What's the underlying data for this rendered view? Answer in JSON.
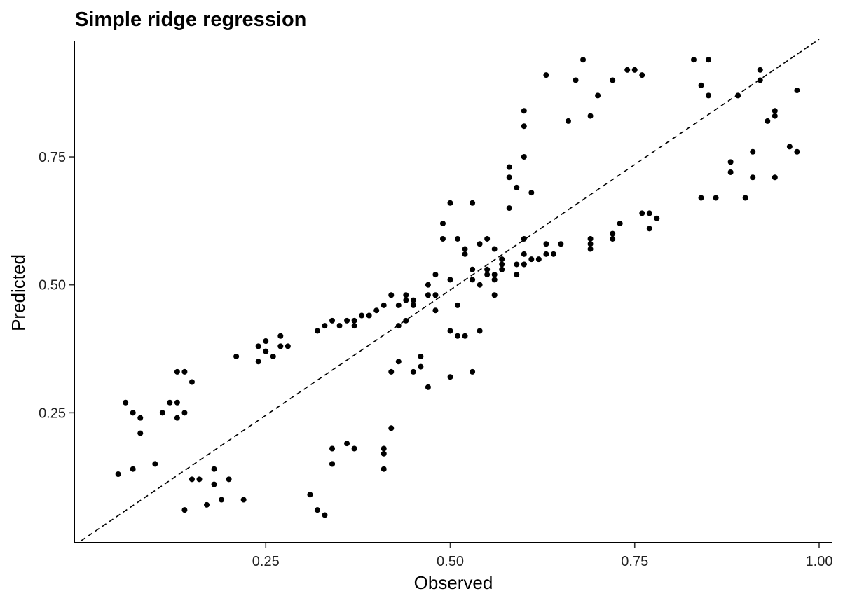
{
  "chart_data": {
    "type": "scatter",
    "title": "Simple ridge regression",
    "xlabel": "Observed",
    "ylabel": "Predicted",
    "xlim": [
      0.0,
      1.0
    ],
    "ylim": [
      0.0,
      0.98
    ],
    "x_ticks": [
      0.25,
      0.5,
      0.75,
      1.0
    ],
    "x_tick_labels": [
      "0.25",
      "0.50",
      "0.75",
      "1.00"
    ],
    "y_ticks": [
      0.25,
      0.5,
      0.75
    ],
    "y_tick_labels": [
      "0.25",
      "0.50",
      "0.75"
    ],
    "grid": false,
    "legend": "none",
    "point_color": "#000000",
    "reference_line": {
      "style": "dashed",
      "from": [
        0.0,
        0.0
      ],
      "to": [
        1.0,
        0.98
      ]
    },
    "series": [
      {
        "points": [
          [
            0.05,
            0.13
          ],
          [
            0.07,
            0.14
          ],
          [
            0.06,
            0.27
          ],
          [
            0.07,
            0.25
          ],
          [
            0.08,
            0.24
          ],
          [
            0.08,
            0.21
          ],
          [
            0.1,
            0.15
          ],
          [
            0.11,
            0.25
          ],
          [
            0.12,
            0.27
          ],
          [
            0.13,
            0.27
          ],
          [
            0.13,
            0.24
          ],
          [
            0.13,
            0.33
          ],
          [
            0.14,
            0.25
          ],
          [
            0.14,
            0.33
          ],
          [
            0.15,
            0.31
          ],
          [
            0.14,
            0.06
          ],
          [
            0.15,
            0.12
          ],
          [
            0.16,
            0.12
          ],
          [
            0.17,
            0.07
          ],
          [
            0.18,
            0.11
          ],
          [
            0.18,
            0.14
          ],
          [
            0.19,
            0.08
          ],
          [
            0.2,
            0.12
          ],
          [
            0.21,
            0.36
          ],
          [
            0.22,
            0.08
          ],
          [
            0.24,
            0.35
          ],
          [
            0.24,
            0.38
          ],
          [
            0.25,
            0.39
          ],
          [
            0.25,
            0.37
          ],
          [
            0.26,
            0.36
          ],
          [
            0.27,
            0.4
          ],
          [
            0.27,
            0.38
          ],
          [
            0.28,
            0.38
          ],
          [
            0.31,
            0.09
          ],
          [
            0.32,
            0.06
          ],
          [
            0.32,
            0.41
          ],
          [
            0.33,
            0.05
          ],
          [
            0.33,
            0.42
          ],
          [
            0.34,
            0.43
          ],
          [
            0.34,
            0.18
          ],
          [
            0.34,
            0.15
          ],
          [
            0.34,
            0.15
          ],
          [
            0.35,
            0.42
          ],
          [
            0.36,
            0.43
          ],
          [
            0.37,
            0.42
          ],
          [
            0.37,
            0.43
          ],
          [
            0.37,
            0.18
          ],
          [
            0.36,
            0.19
          ],
          [
            0.38,
            0.44
          ],
          [
            0.39,
            0.44
          ],
          [
            0.4,
            0.45
          ],
          [
            0.41,
            0.18
          ],
          [
            0.41,
            0.17
          ],
          [
            0.41,
            0.14
          ],
          [
            0.41,
            0.46
          ],
          [
            0.42,
            0.33
          ],
          [
            0.42,
            0.22
          ],
          [
            0.42,
            0.48
          ],
          [
            0.43,
            0.46
          ],
          [
            0.43,
            0.42
          ],
          [
            0.43,
            0.35
          ],
          [
            0.44,
            0.47
          ],
          [
            0.44,
            0.48
          ],
          [
            0.44,
            0.43
          ],
          [
            0.45,
            0.46
          ],
          [
            0.45,
            0.47
          ],
          [
            0.45,
            0.33
          ],
          [
            0.46,
            0.34
          ],
          [
            0.46,
            0.36
          ],
          [
            0.47,
            0.3
          ],
          [
            0.47,
            0.48
          ],
          [
            0.47,
            0.5
          ],
          [
            0.48,
            0.45
          ],
          [
            0.48,
            0.48
          ],
          [
            0.48,
            0.52
          ],
          [
            0.49,
            0.62
          ],
          [
            0.49,
            0.59
          ],
          [
            0.5,
            0.51
          ],
          [
            0.5,
            0.32
          ],
          [
            0.5,
            0.41
          ],
          [
            0.5,
            0.66
          ],
          [
            0.51,
            0.59
          ],
          [
            0.51,
            0.4
          ],
          [
            0.51,
            0.46
          ],
          [
            0.52,
            0.56
          ],
          [
            0.52,
            0.4
          ],
          [
            0.52,
            0.57
          ],
          [
            0.53,
            0.33
          ],
          [
            0.53,
            0.66
          ],
          [
            0.53,
            0.53
          ],
          [
            0.53,
            0.51
          ],
          [
            0.54,
            0.58
          ],
          [
            0.54,
            0.41
          ],
          [
            0.54,
            0.5
          ],
          [
            0.55,
            0.53
          ],
          [
            0.55,
            0.59
          ],
          [
            0.55,
            0.52
          ],
          [
            0.56,
            0.57
          ],
          [
            0.56,
            0.52
          ],
          [
            0.56,
            0.51
          ],
          [
            0.56,
            0.48
          ],
          [
            0.57,
            0.53
          ],
          [
            0.57,
            0.55
          ],
          [
            0.57,
            0.54
          ],
          [
            0.58,
            0.73
          ],
          [
            0.58,
            0.73
          ],
          [
            0.58,
            0.65
          ],
          [
            0.58,
            0.71
          ],
          [
            0.59,
            0.69
          ],
          [
            0.59,
            0.54
          ],
          [
            0.59,
            0.52
          ],
          [
            0.6,
            0.59
          ],
          [
            0.6,
            0.54
          ],
          [
            0.6,
            0.54
          ],
          [
            0.6,
            0.56
          ],
          [
            0.61,
            0.55
          ],
          [
            0.6,
            0.84
          ],
          [
            0.6,
            0.81
          ],
          [
            0.6,
            0.75
          ],
          [
            0.61,
            0.68
          ],
          [
            0.62,
            0.55
          ],
          [
            0.63,
            0.56
          ],
          [
            0.63,
            0.58
          ],
          [
            0.63,
            0.91
          ],
          [
            0.64,
            0.56
          ],
          [
            0.65,
            0.58
          ],
          [
            0.66,
            0.82
          ],
          [
            0.67,
            0.9
          ],
          [
            0.68,
            0.94
          ],
          [
            0.69,
            0.59
          ],
          [
            0.69,
            0.57
          ],
          [
            0.69,
            0.58
          ],
          [
            0.69,
            0.83
          ],
          [
            0.7,
            0.87
          ],
          [
            0.72,
            0.59
          ],
          [
            0.72,
            0.6
          ],
          [
            0.72,
            0.9
          ],
          [
            0.73,
            0.62
          ],
          [
            0.74,
            0.92
          ],
          [
            0.75,
            0.92
          ],
          [
            0.76,
            0.64
          ],
          [
            0.76,
            0.91
          ],
          [
            0.77,
            0.61
          ],
          [
            0.77,
            0.64
          ],
          [
            0.78,
            0.63
          ],
          [
            0.83,
            0.94
          ],
          [
            0.84,
            0.89
          ],
          [
            0.84,
            0.67
          ],
          [
            0.85,
            0.94
          ],
          [
            0.85,
            0.87
          ],
          [
            0.86,
            0.67
          ],
          [
            0.88,
            0.74
          ],
          [
            0.88,
            0.72
          ],
          [
            0.89,
            0.87
          ],
          [
            0.9,
            0.67
          ],
          [
            0.91,
            0.76
          ],
          [
            0.91,
            0.71
          ],
          [
            0.92,
            0.9
          ],
          [
            0.92,
            0.92
          ],
          [
            0.93,
            0.82
          ],
          [
            0.94,
            0.83
          ],
          [
            0.94,
            0.84
          ],
          [
            0.94,
            0.71
          ],
          [
            0.96,
            0.77
          ],
          [
            0.97,
            0.76
          ],
          [
            0.97,
            0.88
          ]
        ]
      }
    ]
  }
}
